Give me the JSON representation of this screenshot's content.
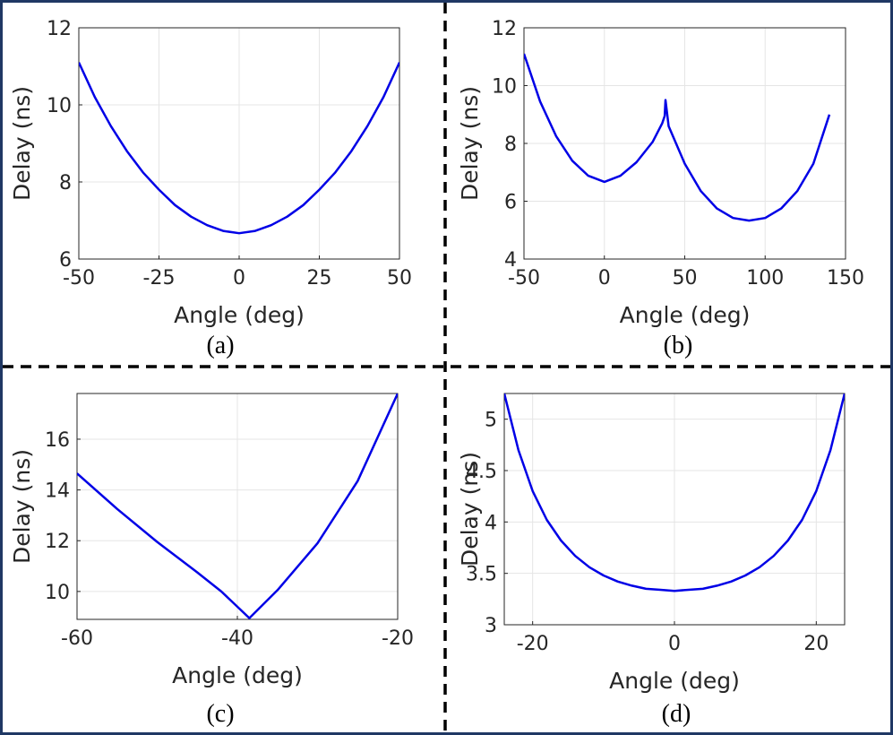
{
  "colors": {
    "frame": "#1f3864",
    "divider": "#000000",
    "curve": "#0000e6",
    "grid": "#e5e5e5",
    "axis": "#262626"
  },
  "chart_data": [
    {
      "id": "a",
      "type": "line",
      "caption": "(a)",
      "xlabel": "Angle (deg)",
      "ylabel": "Delay (ns)",
      "xlim": [
        -50,
        50
      ],
      "ylim": [
        6,
        12
      ],
      "xticks": [
        -50,
        -25,
        0,
        25,
        50
      ],
      "yticks": [
        6,
        8,
        10,
        12
      ],
      "xtick_labels": [
        "-50",
        "-25",
        "0",
        "25",
        "50"
      ],
      "ytick_labels": [
        "6",
        "8",
        "10",
        "12"
      ],
      "grid": true,
      "series": [
        {
          "name": "delay",
          "x": [
            -50,
            -45,
            -40,
            -35,
            -30,
            -25,
            -20,
            -15,
            -10,
            -5,
            0,
            5,
            10,
            15,
            20,
            25,
            30,
            35,
            40,
            45,
            50
          ],
          "y": [
            11.1,
            10.2,
            9.45,
            8.8,
            8.25,
            7.8,
            7.4,
            7.1,
            6.88,
            6.73,
            6.67,
            6.73,
            6.88,
            7.1,
            7.4,
            7.8,
            8.25,
            8.8,
            9.45,
            10.2,
            11.1
          ]
        }
      ]
    },
    {
      "id": "b",
      "type": "line",
      "caption": "(b)",
      "xlabel": "Angle (deg)",
      "ylabel": "Delay (ns)",
      "xlim": [
        -50,
        150
      ],
      "ylim": [
        4,
        12
      ],
      "xticks": [
        -50,
        0,
        50,
        100,
        150
      ],
      "yticks": [
        4,
        6,
        8,
        10,
        12
      ],
      "xtick_labels": [
        "-50",
        "0",
        "50",
        "100",
        "150"
      ],
      "ytick_labels": [
        "4",
        "6",
        "8",
        "10",
        "12"
      ],
      "grid": true,
      "series": [
        {
          "name": "delay",
          "x": [
            -50,
            -40,
            -30,
            -20,
            -10,
            0,
            10,
            20,
            30,
            36,
            37.5,
            38,
            40,
            50,
            60,
            70,
            80,
            90,
            100,
            110,
            120,
            130,
            140
          ],
          "y": [
            11.1,
            9.45,
            8.25,
            7.4,
            6.88,
            6.67,
            6.88,
            7.35,
            8.05,
            8.7,
            8.95,
            9.5,
            8.6,
            7.3,
            6.35,
            5.75,
            5.42,
            5.33,
            5.42,
            5.75,
            6.35,
            7.3,
            9.0
          ]
        }
      ]
    },
    {
      "id": "c",
      "type": "line",
      "caption": "(c)",
      "xlabel": "Angle (deg)",
      "ylabel": "Delay (ns)",
      "xlim": [
        -60,
        -20
      ],
      "ylim": [
        8.9,
        17.8
      ],
      "xticks": [
        -60,
        -40,
        -20
      ],
      "yticks": [
        10,
        12,
        14,
        16
      ],
      "xtick_labels": [
        "-60",
        "-40",
        "-20"
      ],
      "ytick_labels": [
        "10",
        "12",
        "14",
        "16"
      ],
      "grid": true,
      "series": [
        {
          "name": "delay",
          "x": [
            -60,
            -55,
            -50,
            -45,
            -42,
            -39.5,
            -38.5,
            -35,
            -30,
            -25,
            -20
          ],
          "y": [
            14.65,
            13.25,
            11.95,
            10.75,
            10.0,
            9.25,
            8.95,
            10.05,
            11.9,
            14.35,
            17.8
          ]
        }
      ]
    },
    {
      "id": "d",
      "type": "line",
      "caption": "(d)",
      "xlabel": "Angle (deg)",
      "ylabel": "Delay (ns)",
      "xlim": [
        -24,
        24
      ],
      "ylim": [
        3,
        5.25
      ],
      "xticks": [
        -20,
        0,
        20
      ],
      "yticks": [
        3,
        3.5,
        4,
        4.5,
        5
      ],
      "xtick_labels": [
        "-20",
        "0",
        "20"
      ],
      "ytick_labels": [
        "3",
        "3.5",
        "4",
        "4.5",
        "5"
      ],
      "grid": true,
      "series": [
        {
          "name": "delay",
          "x": [
            -24,
            -22,
            -20,
            -18,
            -16,
            -14,
            -12,
            -10,
            -8,
            -6,
            -4,
            -2,
            0,
            2,
            4,
            6,
            8,
            10,
            12,
            14,
            16,
            18,
            20,
            22,
            24
          ],
          "y": [
            5.25,
            4.7,
            4.3,
            4.02,
            3.82,
            3.67,
            3.56,
            3.48,
            3.42,
            3.38,
            3.35,
            3.34,
            3.33,
            3.34,
            3.35,
            3.38,
            3.42,
            3.48,
            3.56,
            3.67,
            3.82,
            4.02,
            4.3,
            4.7,
            5.25
          ]
        }
      ]
    }
  ]
}
